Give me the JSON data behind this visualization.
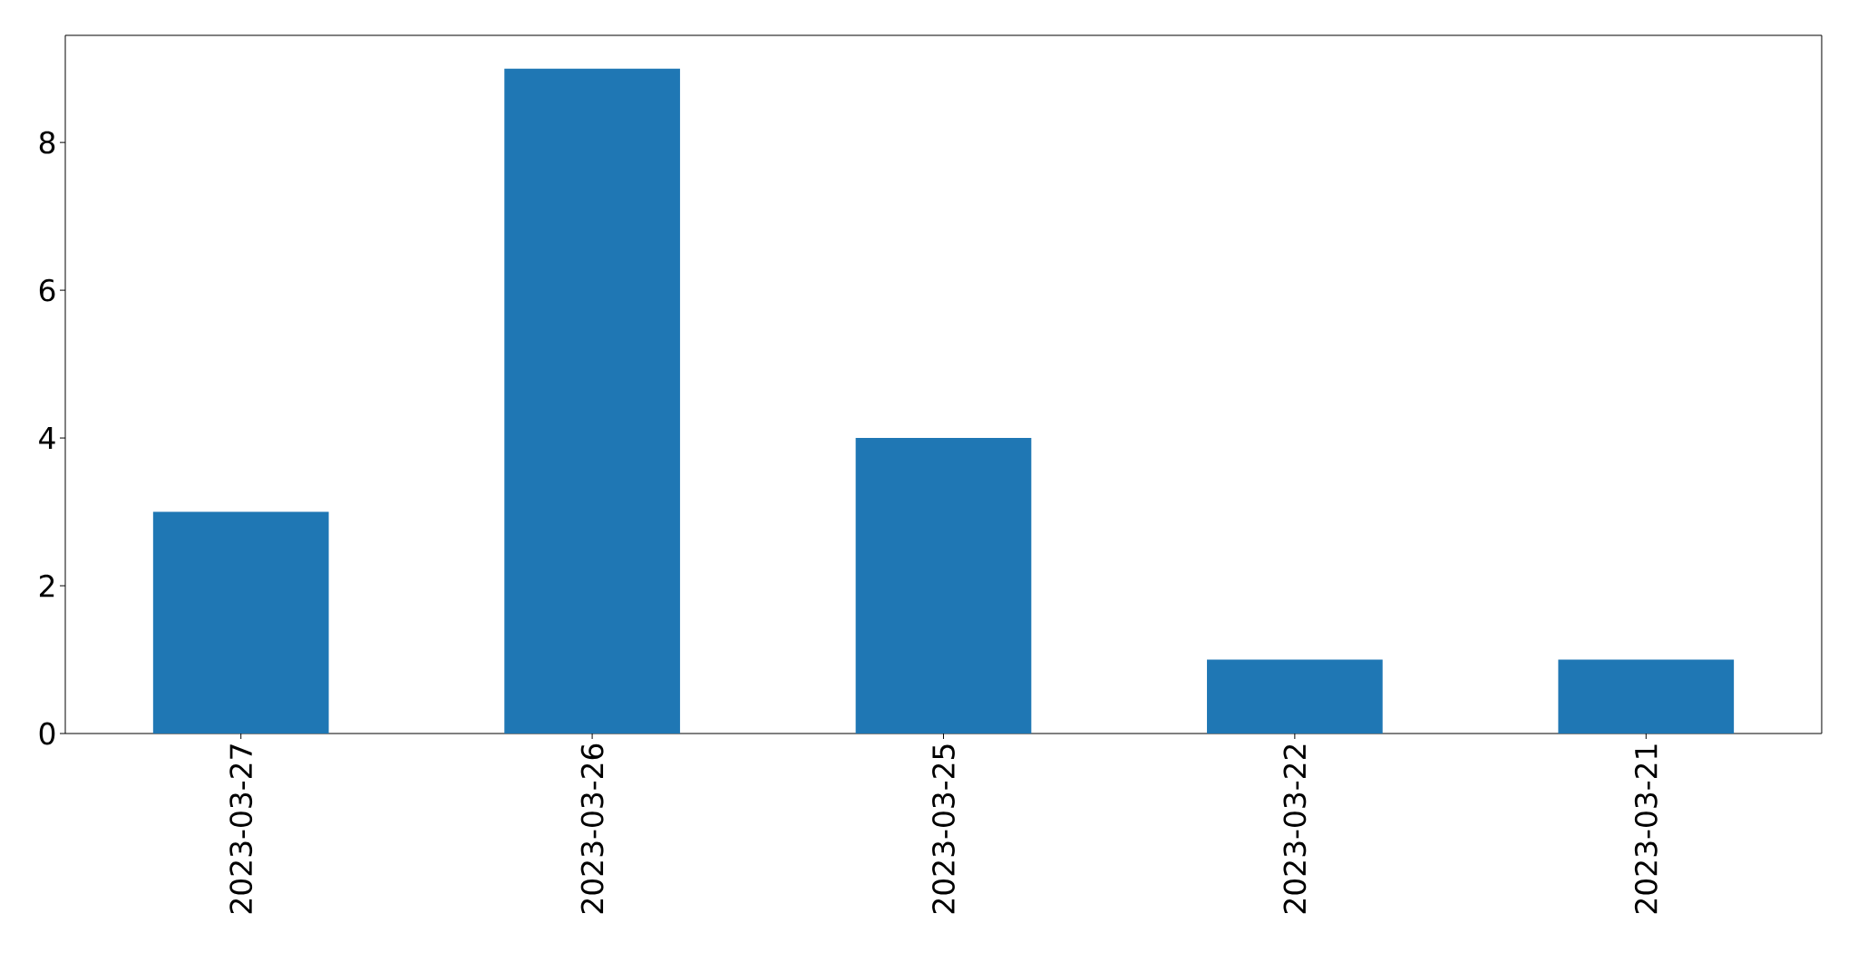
{
  "chart_data": {
    "type": "bar",
    "categories": [
      "2023-03-27",
      "2023-03-26",
      "2023-03-25",
      "2023-03-22",
      "2023-03-21"
    ],
    "values": [
      3,
      9,
      4,
      1,
      1
    ],
    "color": "#1f77b4",
    "ylim": [
      0,
      9.45
    ],
    "yticks": [
      0,
      2,
      4,
      6,
      8
    ]
  }
}
